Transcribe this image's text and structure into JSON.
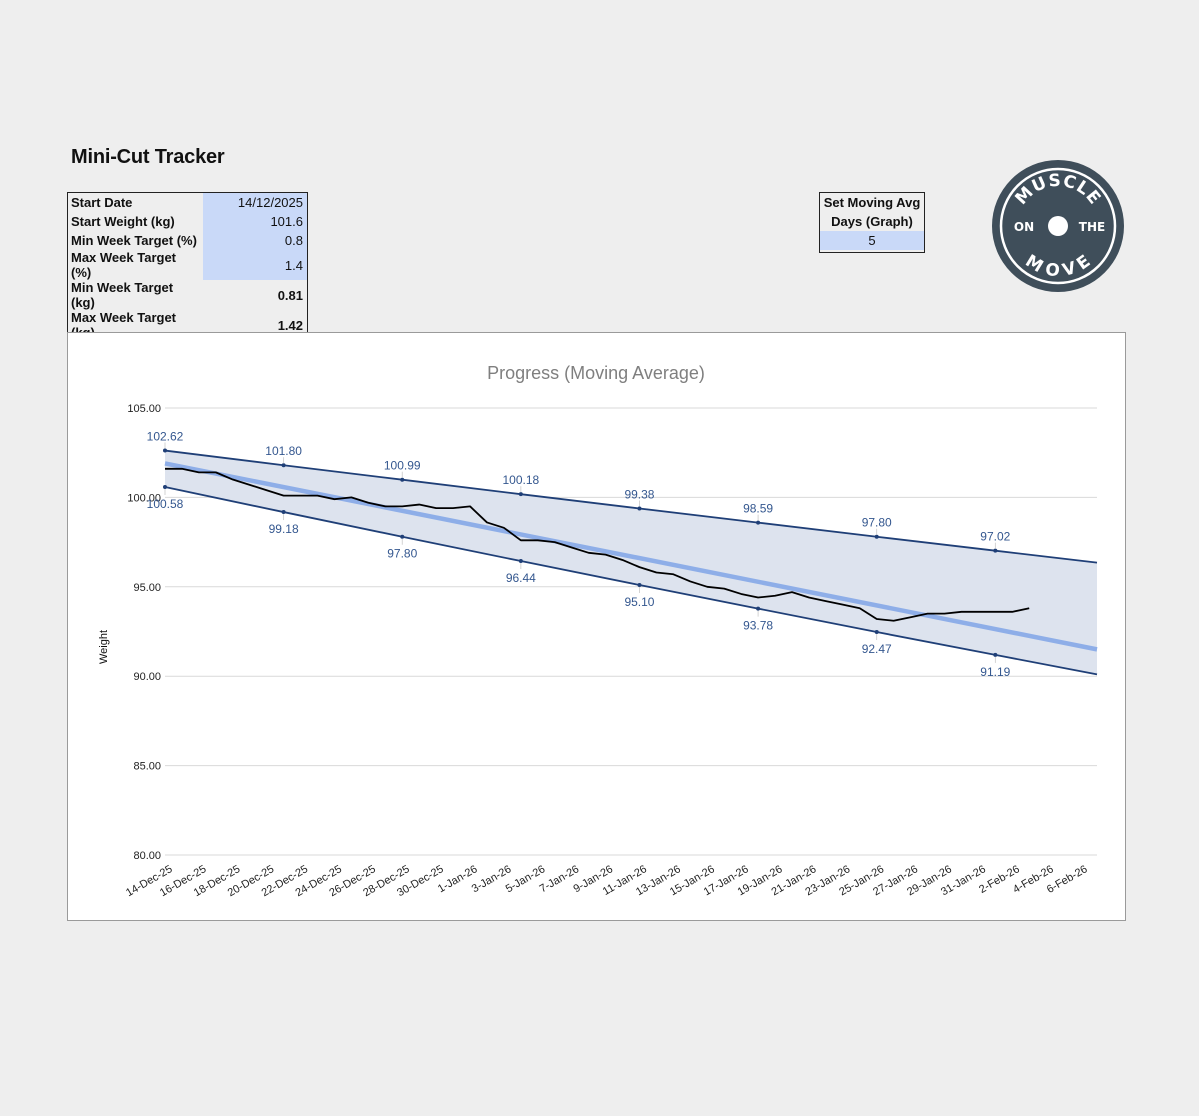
{
  "page": {
    "title": "Mini-Cut Tracker"
  },
  "settings": [
    {
      "label": "Start Date",
      "value": "14/12/2025",
      "kind": "input"
    },
    {
      "label": "Start Weight (kg)",
      "value": "101.6",
      "kind": "input"
    },
    {
      "label": "Min Week Target (%)",
      "value": "0.8",
      "kind": "input"
    },
    {
      "label": "Max Week Target (%)",
      "value": "1.4",
      "kind": "input"
    },
    {
      "label": "Min Week Target (kg)",
      "value": "0.81",
      "kind": "calc"
    },
    {
      "label": "Max Week Target (kg)",
      "value": "1.42",
      "kind": "calc"
    }
  ],
  "moving_avg": {
    "label_line1": "Set Moving Avg",
    "label_line2": "Days (Graph)",
    "value": "5"
  },
  "logo": {
    "text_top": "MUSCLE",
    "text_left": "ON",
    "text_right": "THE",
    "text_bottom": "MOVE",
    "color": "#3f4e5a"
  },
  "colors": {
    "band_fill": "#dde3ee",
    "band_line": "#1f3f77",
    "trend_line": "#8eaee8",
    "weight_line": "#000000",
    "label_text": "#34578f",
    "input_cell": "#c9d9f8"
  },
  "chart_data": {
    "type": "line",
    "title": "Progress (Moving Average)",
    "ylabel": "Weight",
    "xlabel": "",
    "ylim": [
      80,
      105
    ],
    "yticks": [
      "80.00",
      "85.00",
      "90.00",
      "95.00",
      "100.00",
      "105.00"
    ],
    "x_start": "14-Dec-25",
    "x_end": "7-Feb-26",
    "xticks": [
      "14-Dec-25",
      "16-Dec-25",
      "18-Dec-25",
      "20-Dec-25",
      "22-Dec-25",
      "24-Dec-25",
      "26-Dec-25",
      "28-Dec-25",
      "30-Dec-25",
      "1-Jan-26",
      "3-Jan-26",
      "5-Jan-26",
      "7-Jan-26",
      "9-Jan-26",
      "11-Jan-26",
      "13-Jan-26",
      "15-Jan-26",
      "17-Jan-26",
      "19-Jan-26",
      "21-Jan-26",
      "23-Jan-26",
      "25-Jan-26",
      "27-Jan-26",
      "29-Jan-26",
      "31-Jan-26",
      "2-Feb-26",
      "4-Feb-26",
      "6-Feb-26"
    ],
    "grid": true,
    "legend": "none",
    "series": [
      {
        "role": "max_band",
        "x": [
          "14-Dec-25",
          "21-Dec-25",
          "28-Dec-25",
          "4-Jan-26",
          "11-Jan-26",
          "18-Jan-26",
          "25-Jan-26",
          "1-Feb-26",
          "7-Feb-26"
        ],
        "values": [
          102.62,
          101.8,
          100.99,
          100.18,
          99.38,
          98.59,
          97.8,
          97.02,
          96.35
        ],
        "labels": [
          "102.62",
          "101.80",
          "100.99",
          "100.18",
          "99.38",
          "98.59",
          "97.80",
          "97.02"
        ]
      },
      {
        "role": "min_band",
        "x": [
          "14-Dec-25",
          "21-Dec-25",
          "28-Dec-25",
          "4-Jan-26",
          "11-Jan-26",
          "18-Jan-26",
          "25-Jan-26",
          "1-Feb-26",
          "7-Feb-26"
        ],
        "values": [
          100.58,
          99.18,
          97.8,
          96.44,
          95.1,
          93.78,
          92.47,
          91.19,
          90.1
        ],
        "labels": [
          "100.58",
          "99.18",
          "97.80",
          "96.44",
          "95.10",
          "93.78",
          "92.47",
          "91.19"
        ]
      },
      {
        "role": "trend",
        "x": [
          "14-Dec-25",
          "7-Feb-26"
        ],
        "values": [
          101.9,
          91.5
        ]
      },
      {
        "role": "weight_moving_avg",
        "x": [
          "14-Dec-25",
          "15-Dec-25",
          "16-Dec-25",
          "17-Dec-25",
          "18-Dec-25",
          "19-Dec-25",
          "20-Dec-25",
          "21-Dec-25",
          "22-Dec-25",
          "23-Dec-25",
          "24-Dec-25",
          "25-Dec-25",
          "26-Dec-25",
          "27-Dec-25",
          "28-Dec-25",
          "29-Dec-25",
          "30-Dec-25",
          "31-Dec-25",
          "1-Jan-26",
          "2-Jan-26",
          "3-Jan-26",
          "4-Jan-26",
          "5-Jan-26",
          "6-Jan-26",
          "7-Jan-26",
          "8-Jan-26",
          "9-Jan-26",
          "10-Jan-26",
          "11-Jan-26",
          "12-Jan-26",
          "13-Jan-26",
          "14-Jan-26",
          "15-Jan-26",
          "16-Jan-26",
          "17-Jan-26",
          "18-Jan-26",
          "19-Jan-26",
          "20-Jan-26",
          "21-Jan-26",
          "22-Jan-26",
          "23-Jan-26",
          "24-Jan-26",
          "25-Jan-26",
          "26-Jan-26",
          "27-Jan-26",
          "28-Jan-26",
          "29-Jan-26",
          "30-Jan-26",
          "31-Jan-26",
          "1-Feb-26",
          "2-Feb-26",
          "3-Feb-26"
        ],
        "values": [
          101.6,
          101.6,
          101.4,
          101.4,
          101.0,
          100.7,
          100.4,
          100.1,
          100.1,
          100.1,
          99.9,
          100.0,
          99.7,
          99.5,
          99.5,
          99.6,
          99.4,
          99.4,
          99.5,
          98.6,
          98.3,
          97.6,
          97.6,
          97.5,
          97.2,
          96.9,
          96.8,
          96.5,
          96.1,
          95.8,
          95.7,
          95.3,
          95.0,
          94.9,
          94.6,
          94.4,
          94.5,
          94.7,
          94.4,
          94.2,
          94.0,
          93.8,
          93.2,
          93.1,
          93.3,
          93.5,
          93.5,
          93.6,
          93.6,
          93.6,
          93.6,
          93.8
        ]
      }
    ]
  }
}
